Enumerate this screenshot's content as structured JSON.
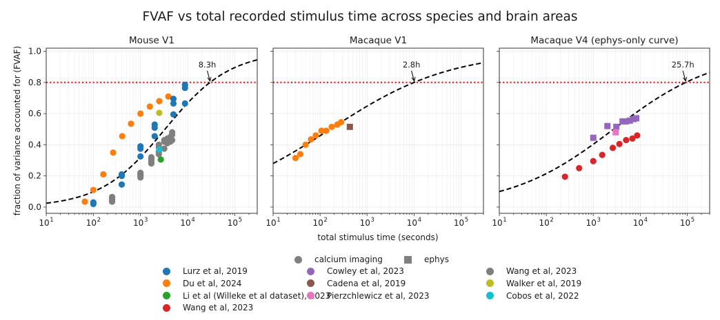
{
  "chart_data": {
    "title": "FVAF vs total recorded stimulus time across species and brain areas",
    "xlabel": "total stimulus time (seconds)",
    "ylabel": "fraction of variance accounted for (FVAF)",
    "type": "scatter",
    "xscale": "log",
    "xlim": [
      10,
      300000
    ],
    "ylim": [
      -0.04,
      1.02
    ],
    "xticks": [
      10,
      100,
      1000,
      10000,
      100000
    ],
    "xtick_labels": [
      "10",
      "10",
      "10",
      "10",
      "10"
    ],
    "xtick_exponents": [
      "1",
      "2",
      "3",
      "4",
      "5"
    ],
    "yticks": [
      0.0,
      0.2,
      0.4,
      0.6,
      0.8,
      1.0
    ],
    "ytick_labels": [
      "0.0",
      "0.2",
      "0.4",
      "0.6",
      "0.8",
      "1.0"
    ],
    "threshold": 0.8,
    "grid": true,
    "colors": {
      "Lurz": "#1f77b4",
      "Du": "#ff7f0e",
      "Li": "#2ca02c",
      "WangRed": "#d62728",
      "Cowley": "#9467bd",
      "Cadena": "#8c564b",
      "Pierz": "#e377c2",
      "WangGrey": "#7f7f7f",
      "Walker": "#bcbd22",
      "Cobos": "#17becf",
      "threshold": "#ff0000",
      "curve": "#000000"
    },
    "panels": [
      {
        "title": "Mouse V1",
        "crossing_label": "8.3h",
        "crossing_x": 29880,
        "curve": {
          "k": 1.453,
          "c": 3.521
        },
        "series": [
          {
            "name": "Du et al, 2024",
            "color_key": "Du",
            "marker": "circle",
            "points": [
              [
                66,
                0.035
              ],
              [
                100,
                0.11
              ],
              [
                163,
                0.21
              ],
              [
                263,
                0.35
              ],
              [
                410,
                0.455
              ],
              [
                630,
                0.535
              ],
              [
                1000,
                0.6
              ],
              [
                1580,
                0.645
              ],
              [
                2500,
                0.68
              ],
              [
                3900,
                0.71
              ]
            ]
          },
          {
            "name": "Lurz et al, 2019",
            "color_key": "Lurz",
            "marker": "circle",
            "points": [
              [
                100,
                0.02
              ],
              [
                100,
                0.03
              ],
              [
                400,
                0.145
              ],
              [
                400,
                0.2
              ],
              [
                400,
                0.21
              ],
              [
                1000,
                0.325
              ],
              [
                1000,
                0.375
              ],
              [
                1000,
                0.39
              ],
              [
                2000,
                0.455
              ],
              [
                2000,
                0.51
              ],
              [
                2000,
                0.53
              ],
              [
                5000,
                0.595
              ],
              [
                5000,
                0.665
              ],
              [
                5000,
                0.695
              ],
              [
                8800,
                0.665
              ],
              [
                8800,
                0.765
              ],
              [
                8800,
                0.785
              ]
            ]
          },
          {
            "name": "Wang et al, 2023",
            "color_key": "WangGrey",
            "marker": "circle",
            "points": [
              [
                250,
                0.035
              ],
              [
                250,
                0.045
              ],
              [
                250,
                0.055
              ],
              [
                250,
                0.065
              ],
              [
                1000,
                0.19
              ],
              [
                1000,
                0.2
              ],
              [
                1000,
                0.21
              ],
              [
                1000,
                0.22
              ],
              [
                1700,
                0.28
              ],
              [
                1700,
                0.295
              ],
              [
                1700,
                0.31
              ],
              [
                1700,
                0.32
              ],
              [
                2450,
                0.34
              ],
              [
                2450,
                0.355
              ],
              [
                2450,
                0.385
              ],
              [
                2450,
                0.4
              ],
              [
                3200,
                0.375
              ],
              [
                3200,
                0.42
              ],
              [
                3200,
                0.43
              ],
              [
                3700,
                0.41
              ],
              [
                3700,
                0.43
              ],
              [
                3700,
                0.44
              ],
              [
                4300,
                0.42
              ],
              [
                4300,
                0.45
              ],
              [
                4700,
                0.43
              ],
              [
                4700,
                0.465
              ],
              [
                4700,
                0.48
              ]
            ]
          },
          {
            "name": "Li et al (Willeke et al dataset), 2023",
            "color_key": "Li",
            "marker": "circle",
            "points": [
              [
                2700,
                0.305
              ]
            ]
          },
          {
            "name": "Walker et al, 2019",
            "color_key": "Walker",
            "marker": "circle",
            "points": [
              [
                2500,
                0.605
              ]
            ]
          },
          {
            "name": "Cobos et al, 2022",
            "color_key": "Cobos",
            "marker": "circle",
            "points": [
              [
                2500,
                0.37
              ]
            ]
          }
        ]
      },
      {
        "title": "Macaque V1",
        "crossing_label": "2.8h",
        "crossing_x": 10080,
        "curve": {
          "k": 0.777,
          "c": 2.216
        },
        "series": [
          {
            "name": "Du et al, 2024",
            "color_key": "Du",
            "marker": "circle",
            "points": [
              [
                30,
                0.315
              ],
              [
                38,
                0.34
              ],
              [
                49,
                0.4
              ],
              [
                64,
                0.435
              ],
              [
                81,
                0.46
              ],
              [
                107,
                0.49
              ],
              [
                135,
                0.49
              ],
              [
                177,
                0.515
              ],
              [
                233,
                0.53
              ],
              [
                280,
                0.545
              ]
            ]
          },
          {
            "name": "Cadena et al, 2019",
            "color_key": "Cadena",
            "marker": "square",
            "points": [
              [
                430,
                0.515
              ]
            ]
          }
        ]
      },
      {
        "title": "Macaque V4 (ephys-only curve)",
        "crossing_label": "25.7h",
        "crossing_x": 92520,
        "curve": {
          "k": 0.904,
          "c": 3.433
        },
        "series": [
          {
            "name": "Wang et al, 2023",
            "color_key": "WangRed",
            "marker": "circle",
            "points": [
              [
                250,
                0.195
              ],
              [
                500,
                0.25
              ],
              [
                1000,
                0.295
              ],
              [
                1550,
                0.335
              ],
              [
                2600,
                0.38
              ],
              [
                3600,
                0.405
              ],
              [
                5000,
                0.43
              ],
              [
                6800,
                0.44
              ],
              [
                8600,
                0.46
              ]
            ]
          },
          {
            "name": "Cowley et al, 2023",
            "color_key": "Cowley",
            "marker": "square",
            "points": [
              [
                1000,
                0.445
              ],
              [
                2000,
                0.52
              ],
              [
                3100,
                0.515
              ],
              [
                4200,
                0.55
              ],
              [
                5000,
                0.55
              ],
              [
                6000,
                0.555
              ],
              [
                7200,
                0.565
              ],
              [
                8200,
                0.57
              ]
            ]
          },
          {
            "name": "Pierzchlewicz et al, 2023",
            "color_key": "Pierz",
            "marker": "square",
            "points": [
              [
                3000,
                0.48
              ]
            ]
          }
        ]
      }
    ],
    "legend": {
      "placement": "bottom-center",
      "markers": [
        {
          "label": "calcium imaging",
          "shape": "circle"
        },
        {
          "label": "ephys",
          "shape": "square"
        }
      ],
      "columns": [
        [
          {
            "label": "Lurz et al, 2019",
            "color_key": "Lurz"
          },
          {
            "label": "Du et al, 2024",
            "color_key": "Du"
          },
          {
            "label": "Li et al (Willeke et al dataset), 2023",
            "color_key": "Li"
          },
          {
            "label": "Wang et al, 2023",
            "color_key": "WangRed"
          }
        ],
        [
          {
            "label": "Cowley et al, 2023",
            "color_key": "Cowley"
          },
          {
            "label": "Cadena et al, 2019",
            "color_key": "Cadena"
          },
          {
            "label": "Pierzchlewicz et al, 2023",
            "color_key": "Pierz"
          }
        ],
        [
          {
            "label": "Wang et al, 2023",
            "color_key": "WangGrey"
          },
          {
            "label": "Walker et al, 2019",
            "color_key": "Walker"
          },
          {
            "label": "Cobos et al, 2022",
            "color_key": "Cobos"
          }
        ]
      ]
    }
  }
}
